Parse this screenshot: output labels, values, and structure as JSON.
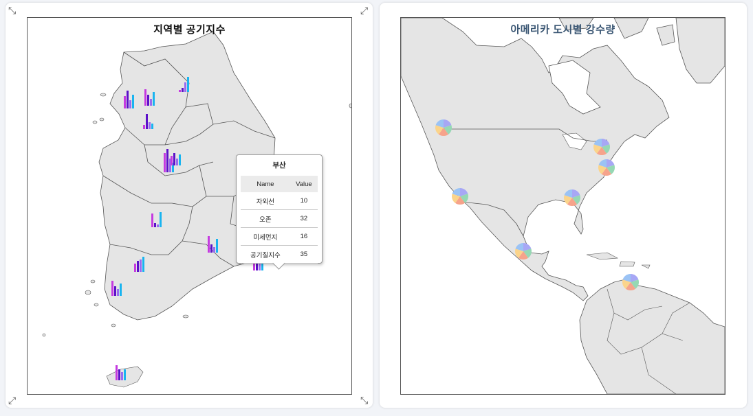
{
  "left_panel": {
    "title": "지역별 공기지수",
    "series_colors": {
      "자외선": "#c53be0",
      "오존": "#5c11c9",
      "미세먼지": "#9a6bf0",
      "공기질지수": "#19b4f0"
    },
    "tooltip": {
      "region": "부산",
      "headers": [
        "Name",
        "Value"
      ],
      "rows": [
        {
          "name": "자외선",
          "value": "10"
        },
        {
          "name": "오존",
          "value": "32"
        },
        {
          "name": "미세먼지",
          "value": "16"
        },
        {
          "name": "공기질지수",
          "value": "35"
        }
      ]
    }
  },
  "right_panel": {
    "title": "아메리카 도시별 강수량",
    "pie_colors": [
      "#a7a7f5",
      "#96d8b4",
      "#f6a38b",
      "#fbd48b",
      "#9bc3f5"
    ]
  },
  "icons": [
    "expand-icon",
    "expand-icon",
    "expand-icon",
    "expand-icon"
  ]
}
